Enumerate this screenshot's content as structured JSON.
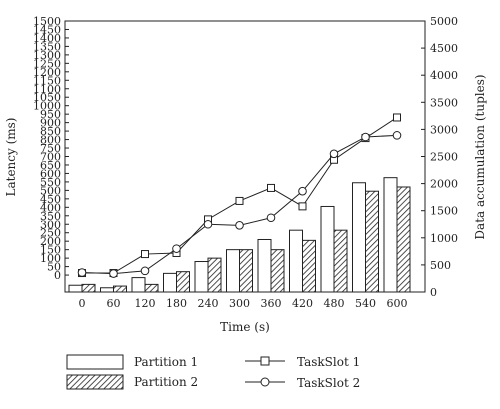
{
  "chart_data": {
    "type": "bar",
    "x": [
      0,
      60,
      120,
      180,
      240,
      300,
      360,
      420,
      480,
      540,
      600
    ],
    "xlabel": "Time (s)",
    "ylabel_left": "Latency (ms)",
    "ylabel_right": "Data accumulation (tuples)",
    "ylim_left": [
      -100,
      1500
    ],
    "ylim_right": [
      0,
      5000
    ],
    "yticks_left": [
      0,
      50,
      100,
      150,
      200,
      250,
      300,
      350,
      400,
      450,
      500,
      550,
      600,
      650,
      700,
      750,
      800,
      850,
      900,
      950,
      1000,
      1050,
      1100,
      1150,
      1200,
      1250,
      1300,
      1350,
      1400,
      1450,
      1500
    ],
    "ytick_labels_left": [
      "0",
      "50",
      "100",
      "150",
      "200",
      "250",
      "300",
      "350",
      "400",
      "450",
      "500",
      "550",
      "600",
      "650",
      "700",
      "750",
      "800",
      "850",
      "900",
      "950",
      "1000",
      "1050",
      "1100",
      "1150",
      "1200",
      "1250",
      "1300",
      "1350",
      "1400",
      "1450",
      "1500"
    ],
    "yticks_right": [
      0,
      500,
      1000,
      1500,
      2000,
      2500,
      3000,
      3500,
      4000,
      4500,
      5000
    ],
    "ytick_labels_right": [
      "0",
      "500",
      "1000",
      "1500",
      "2000",
      "2500",
      "3000",
      "3500",
      "4000",
      "4500",
      "5000"
    ],
    "xtick_labels": [
      "0",
      "60",
      "120",
      "180",
      "240",
      "300",
      "360",
      "420",
      "480",
      "540",
      "600"
    ],
    "bar_series": [
      {
        "name": "Partition 1",
        "axis": "left",
        "values": [
          -60,
          -75,
          -15,
          10,
          80,
          150,
          210,
          265,
          405,
          545,
          575
        ]
      },
      {
        "name": "Partition 2",
        "axis": "left",
        "values": [
          -55,
          -65,
          -55,
          20,
          100,
          150,
          150,
          205,
          265,
          495,
          520
        ]
      }
    ],
    "line_series": [
      {
        "name": "TaskSlot 1",
        "axis": "right",
        "marker": "square",
        "values": [
          350,
          350,
          700,
          720,
          1340,
          1680,
          1920,
          1580,
          2440,
          2840,
          3220
        ]
      },
      {
        "name": "TaskSlot 2",
        "axis": "right",
        "marker": "circle",
        "values": [
          360,
          340,
          390,
          800,
          1250,
          1230,
          1370,
          1860,
          2550,
          2860,
          2890
        ]
      }
    ],
    "legend_placement": "bottom",
    "grid": false
  }
}
